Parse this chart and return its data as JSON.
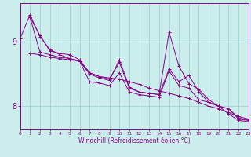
{
  "xlabel": "Windchill (Refroidissement éolien,°C)",
  "bg_color": "#cbeeed",
  "line_color": "#880088",
  "grid_color": "#99cccc",
  "xmin": 0,
  "xmax": 23,
  "ymin": 7.65,
  "ymax": 9.6,
  "series": [
    {
      "x": [
        0,
        1,
        2,
        3,
        4,
        5,
        6,
        7,
        8,
        9,
        10,
        11,
        12,
        13,
        14,
        15,
        16,
        17,
        18,
        19,
        20,
        21,
        22,
        23
      ],
      "y": [
        9.05,
        9.42,
        9.08,
        8.88,
        8.8,
        8.74,
        8.7,
        8.52,
        8.46,
        8.44,
        8.42,
        8.38,
        8.34,
        8.28,
        8.24,
        8.2,
        8.16,
        8.12,
        8.06,
        8.0,
        7.96,
        7.9,
        7.84,
        7.8
      ]
    },
    {
      "x": [
        1,
        2,
        3,
        4,
        5,
        6,
        7,
        8,
        9,
        10,
        11,
        12,
        13,
        14,
        15,
        16,
        17,
        18,
        19,
        20,
        21,
        22,
        23
      ],
      "y": [
        8.82,
        8.8,
        8.76,
        8.74,
        8.72,
        8.7,
        8.38,
        8.36,
        8.32,
        8.52,
        8.22,
        8.18,
        8.16,
        8.14,
        8.55,
        8.32,
        8.28,
        8.1,
        8.06,
        8.0,
        7.96,
        7.82,
        7.78
      ]
    },
    {
      "x": [
        1,
        2,
        3,
        4,
        5,
        6,
        7,
        8,
        9,
        10,
        11,
        12,
        13,
        14,
        15,
        16,
        17,
        18,
        19,
        20,
        21,
        22,
        23
      ],
      "y": [
        9.38,
        9.1,
        8.86,
        8.82,
        8.8,
        8.72,
        8.52,
        8.46,
        8.42,
        8.68,
        8.28,
        8.22,
        8.2,
        8.18,
        9.15,
        8.62,
        8.35,
        8.26,
        8.1,
        8.0,
        7.96,
        7.8,
        7.78
      ]
    },
    {
      "x": [
        1,
        2,
        3,
        4,
        5,
        6,
        7,
        8,
        9,
        10,
        11,
        12,
        13,
        14,
        15,
        16,
        17,
        18,
        19,
        20,
        21,
        22,
        23
      ],
      "y": [
        9.38,
        8.84,
        8.8,
        8.76,
        8.74,
        8.7,
        8.5,
        8.44,
        8.4,
        8.72,
        8.3,
        8.22,
        8.2,
        8.18,
        8.58,
        8.38,
        8.48,
        8.22,
        8.06,
        8.0,
        7.88,
        7.78,
        7.76
      ]
    }
  ],
  "yticks": [
    8,
    9
  ],
  "xticks": [
    0,
    1,
    2,
    3,
    4,
    5,
    6,
    7,
    8,
    9,
    10,
    11,
    12,
    13,
    14,
    15,
    16,
    17,
    18,
    19,
    20,
    21,
    22,
    23
  ],
  "xlabel_fontsize": 5.5,
  "ytick_fontsize": 7,
  "xtick_fontsize": 4.2,
  "linewidth": 0.7,
  "markersize": 2.5
}
